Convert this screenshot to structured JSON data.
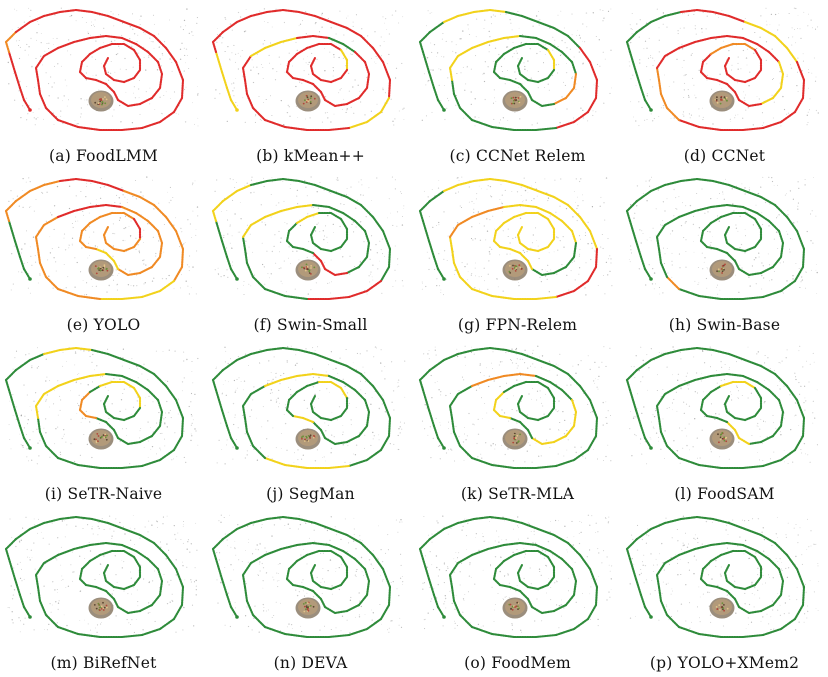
{
  "palette": {
    "green": "#2e8b3a",
    "yellow": "#f2d21b",
    "orange": "#f08a24",
    "red": "#e02b2b",
    "cloud": "#9a9a9a"
  },
  "panels": [
    {
      "caption": "(a) FoodLMM",
      "trajectory": {
        "base": "red",
        "spans": [
          [
            0.05,
            0.09,
            "orange"
          ]
        ]
      }
    },
    {
      "caption": "(b) kMean++",
      "trajectory": {
        "base": "red",
        "spans": [
          [
            0.0,
            0.06,
            "yellow"
          ],
          [
            0.29,
            0.33,
            "yellow"
          ],
          [
            0.48,
            0.52,
            "yellow"
          ],
          [
            0.56,
            0.58,
            "green"
          ],
          [
            0.86,
            0.9,
            "yellow"
          ]
        ]
      }
    },
    {
      "caption": "(c) CCNet Relem",
      "trajectory": {
        "base": "green",
        "spans": [
          [
            0.1,
            0.16,
            "yellow"
          ],
          [
            0.24,
            0.34,
            "red"
          ],
          [
            0.44,
            0.54,
            "yellow"
          ],
          [
            0.62,
            0.66,
            "orange"
          ],
          [
            0.86,
            0.9,
            "yellow"
          ]
        ]
      }
    },
    {
      "caption": "(d) CCNet",
      "trajectory": {
        "base": "red",
        "spans": [
          [
            0.0,
            0.14,
            "green"
          ],
          [
            0.2,
            0.26,
            "yellow"
          ],
          [
            0.4,
            0.46,
            "orange"
          ],
          [
            0.6,
            0.66,
            "yellow"
          ],
          [
            0.8,
            0.86,
            "orange"
          ]
        ]
      }
    },
    {
      "caption": "(e) YOLO",
      "trajectory": {
        "base": "orange",
        "spans": [
          [
            0.0,
            0.06,
            "green"
          ],
          [
            0.14,
            0.2,
            "red"
          ],
          [
            0.3,
            0.36,
            "yellow"
          ],
          [
            0.5,
            0.56,
            "red"
          ],
          [
            0.7,
            0.74,
            "yellow"
          ],
          [
            0.86,
            0.9,
            "red"
          ]
        ]
      }
    },
    {
      "caption": "(f) Swin-Small",
      "trajectory": {
        "base": "green",
        "spans": [
          [
            0.06,
            0.12,
            "yellow"
          ],
          [
            0.3,
            0.36,
            "red"
          ],
          [
            0.46,
            0.54,
            "yellow"
          ],
          [
            0.66,
            0.72,
            "red"
          ],
          [
            0.8,
            0.84,
            "yellow"
          ]
        ]
      }
    },
    {
      "caption": "(g) FPN-Relem",
      "trajectory": {
        "base": "yellow",
        "spans": [
          [
            0.0,
            0.1,
            "green"
          ],
          [
            0.28,
            0.34,
            "red"
          ],
          [
            0.46,
            0.52,
            "orange"
          ],
          [
            0.62,
            0.7,
            "green"
          ]
        ]
      }
    },
    {
      "caption": "(h) Swin-Base",
      "trajectory": {
        "base": "green",
        "spans": [
          [
            0.4,
            0.42,
            "orange"
          ]
        ]
      }
    },
    {
      "caption": "(i) SeTR-Naive",
      "trajectory": {
        "base": "green",
        "spans": [
          [
            0.12,
            0.16,
            "yellow"
          ],
          [
            0.44,
            0.54,
            "yellow"
          ],
          [
            0.74,
            0.8,
            "orange"
          ],
          [
            0.82,
            0.9,
            "yellow"
          ]
        ]
      }
    },
    {
      "caption": "(j) SegMan",
      "trajectory": {
        "base": "green",
        "spans": [
          [
            0.34,
            0.4,
            "yellow"
          ],
          [
            0.5,
            0.56,
            "yellow"
          ],
          [
            0.72,
            0.76,
            "yellow"
          ],
          [
            0.84,
            0.88,
            "yellow"
          ]
        ]
      }
    },
    {
      "caption": "(k) SeTR-MLA",
      "trajectory": {
        "base": "green",
        "spans": [
          [
            0.5,
            0.56,
            "orange"
          ],
          [
            0.6,
            0.7,
            "yellow"
          ],
          [
            0.74,
            0.8,
            "yellow"
          ]
        ]
      }
    },
    {
      "caption": "(l) FoodSAM",
      "trajectory": {
        "base": "green",
        "spans": [
          [
            0.68,
            0.72,
            "yellow"
          ],
          [
            0.82,
            0.86,
            "yellow"
          ]
        ]
      }
    },
    {
      "caption": "(m) BiRefNet",
      "trajectory": {
        "base": "green",
        "spans": []
      }
    },
    {
      "caption": "(n) DEVA",
      "trajectory": {
        "base": "green",
        "spans": []
      }
    },
    {
      "caption": "(o) FoodMem",
      "trajectory": {
        "base": "green",
        "spans": []
      }
    },
    {
      "caption": "(p) YOLO+XMem2",
      "trajectory": {
        "base": "green",
        "spans": []
      }
    }
  ]
}
